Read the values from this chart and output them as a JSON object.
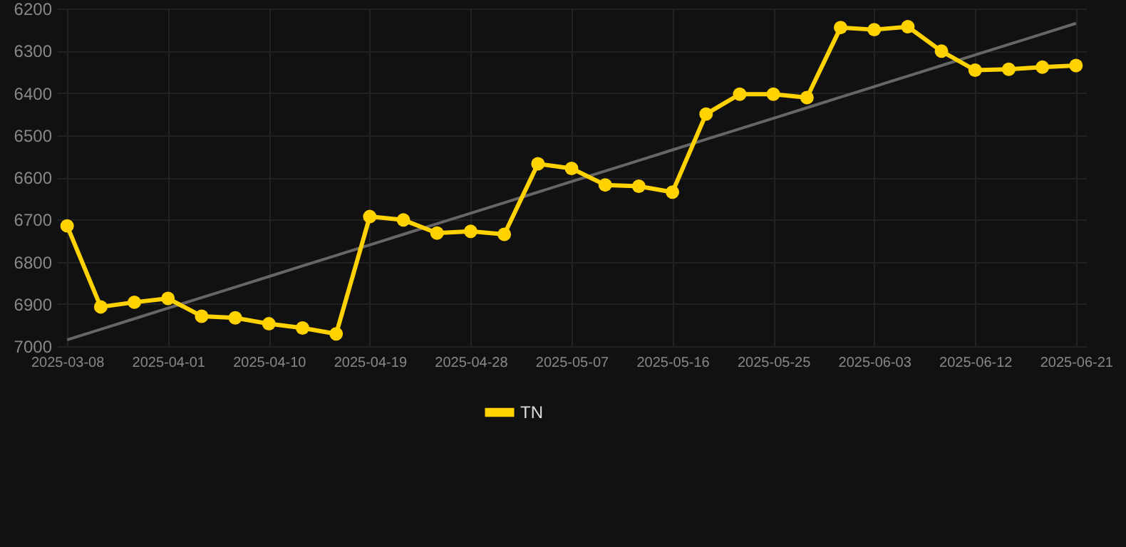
{
  "chart_data": {
    "type": "line",
    "categories": [
      "2025-03-08",
      null,
      null,
      "2025-04-01",
      null,
      null,
      "2025-04-10",
      null,
      null,
      "2025-04-19",
      null,
      null,
      "2025-04-28",
      null,
      null,
      "2025-05-07",
      null,
      null,
      "2025-05-16",
      null,
      null,
      "2025-05-25",
      null,
      null,
      "2025-06-03",
      null,
      null,
      "2025-06-12",
      null,
      null,
      "2025-06-21"
    ],
    "series": [
      {
        "name": "TN",
        "color": "#ffd200",
        "marker": "circle",
        "values": [
          6715,
          6907,
          6896,
          6887,
          6929,
          6933,
          6947,
          6957,
          6971,
          6693,
          6701,
          6732,
          6728,
          6735,
          6568,
          6579,
          6618,
          6621,
          6635,
          6450,
          6403,
          6403,
          6411,
          6245,
          6250,
          6243,
          6301,
          6346,
          6344,
          6339,
          6335
        ]
      },
      {
        "type": "line",
        "color": "#666666",
        "values": [
          6985,
          6960,
          6935,
          6910,
          6885,
          6860,
          6835,
          6810,
          6785,
          6760,
          6735,
          6710,
          6685,
          6660,
          6635,
          6610,
          6585,
          6560,
          6535,
          6510,
          6485,
          6460,
          6435,
          6410,
          6385,
          6360,
          6335,
          6310,
          6285,
          6260,
          6235
        ]
      }
    ],
    "ylim": [
      7000,
      6200
    ],
    "yticks": [
      6200,
      6300,
      6400,
      6500,
      6600,
      6700,
      6800,
      6900,
      7000
    ],
    "grid": true,
    "legend": "bottom",
    "line_style": "solid"
  }
}
